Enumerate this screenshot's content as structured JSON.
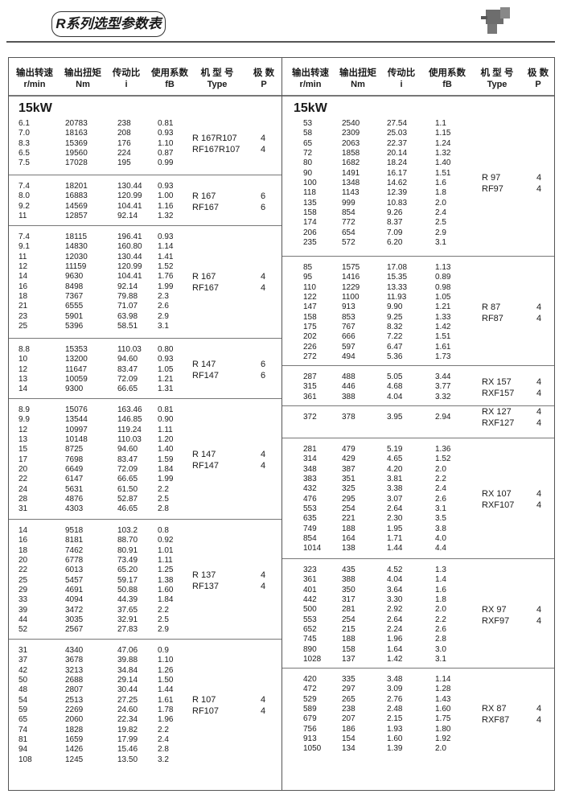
{
  "title": "R系列选型参数表",
  "header": {
    "speed_cn": "输出转速",
    "torque_cn": "输出扭矩",
    "ratio_cn": "传动比",
    "fs_cn": "使用系数",
    "type_cn": "机 型 号",
    "poles_cn": "极 数",
    "speed_unit": "r/min",
    "torque_unit": "Nm",
    "ratio_unit": "i",
    "fs_unit": "fB",
    "type_unit": "Type",
    "poles_unit": "P"
  },
  "power": "15kW",
  "left": [
    {
      "types": [
        "R 167R107",
        "RF167R107"
      ],
      "poles": [
        "4",
        "4"
      ],
      "rows": [
        [
          "6.1",
          "20783",
          "238",
          "0.81"
        ],
        [
          "7.0",
          "18163",
          "208",
          "0.93"
        ],
        [
          "8.3",
          "15369",
          "176",
          "1.10"
        ],
        [
          "6.5",
          "19560",
          "224",
          "0.87"
        ],
        [
          "7.5",
          "17028",
          "195",
          "0.99"
        ]
      ]
    },
    {
      "types": [
        "R 167",
        "RF167"
      ],
      "poles": [
        "6",
        "6"
      ],
      "rows": [
        [
          "7.4",
          "18201",
          "130.44",
          "0.93"
        ],
        [
          "8.0",
          "16883",
          "120.99",
          "1.00"
        ],
        [
          "9.2",
          "14569",
          "104.41",
          "1.16"
        ],
        [
          "11",
          "12857",
          "92.14",
          "1.32"
        ]
      ]
    },
    {
      "types": [
        "R 167",
        "RF167"
      ],
      "poles": [
        "4",
        "4"
      ],
      "rows": [
        [
          "7.4",
          "18115",
          "196.41",
          "0.93"
        ],
        [
          "9.1",
          "14830",
          "160.80",
          "1.14"
        ],
        [
          "11",
          "12030",
          "130.44",
          "1.41"
        ],
        [
          "12",
          "11159",
          "120.99",
          "1.52"
        ],
        [
          "14",
          "9630",
          "104.41",
          "1.76"
        ],
        [
          "16",
          "8498",
          "92.14",
          "1.99"
        ],
        [
          "18",
          "7367",
          "79.88",
          "2.3"
        ],
        [
          "21",
          "6555",
          "71.07",
          "2.6"
        ],
        [
          "23",
          "5901",
          "63.98",
          "2.9"
        ],
        [
          "25",
          "5396",
          "58.51",
          "3.1"
        ]
      ]
    },
    {
      "types": [
        "R 147",
        "RF147"
      ],
      "poles": [
        "6",
        "6"
      ],
      "rows": [
        [
          "8.8",
          "15353",
          "110.03",
          "0.80"
        ],
        [
          "10",
          "13200",
          "94.60",
          "0.93"
        ],
        [
          "12",
          "11647",
          "83.47",
          "1.05"
        ],
        [
          "13",
          "10059",
          "72.09",
          "1.21"
        ],
        [
          "14",
          "9300",
          "66.65",
          "1.31"
        ]
      ]
    },
    {
      "types": [
        "R 147",
        "RF147"
      ],
      "poles": [
        "4",
        "4"
      ],
      "rows": [
        [
          "8.9",
          "15076",
          "163.46",
          "0.81"
        ],
        [
          "9.9",
          "13544",
          "146.85",
          "0.90"
        ],
        [
          "12",
          "10997",
          "119.24",
          "1.11"
        ],
        [
          "13",
          "10148",
          "110.03",
          "1.20"
        ],
        [
          "15",
          "8725",
          "94.60",
          "1.40"
        ],
        [
          "17",
          "7698",
          "83.47",
          "1.59"
        ],
        [
          "20",
          "6649",
          "72.09",
          "1.84"
        ],
        [
          "22",
          "6147",
          "66.65",
          "1.99"
        ],
        [
          "24",
          "5631",
          "61.50",
          "2.2"
        ],
        [
          "28",
          "4876",
          "52.87",
          "2.5"
        ],
        [
          "31",
          "4303",
          "46.65",
          "2.8"
        ]
      ]
    },
    {
      "types": [
        "R 137",
        "RF137"
      ],
      "poles": [
        "4",
        "4"
      ],
      "rows": [
        [
          "14",
          "9518",
          "103.2",
          "0.8"
        ],
        [
          "16",
          "8181",
          "88.70",
          "0.92"
        ],
        [
          "18",
          "7462",
          "80.91",
          "1.01"
        ],
        [
          "20",
          "6778",
          "73.49",
          "1.11"
        ],
        [
          "22",
          "6013",
          "65.20",
          "1.25"
        ],
        [
          "25",
          "5457",
          "59.17",
          "1.38"
        ],
        [
          "29",
          "4691",
          "50.88",
          "1.60"
        ],
        [
          "33",
          "4094",
          "44.39",
          "1.84"
        ],
        [
          "39",
          "3472",
          "37.65",
          "2.2"
        ],
        [
          "44",
          "3035",
          "32.91",
          "2.5"
        ],
        [
          "52",
          "2567",
          "27.83",
          "2.9"
        ]
      ]
    },
    {
      "types": [
        "R 107",
        "RF107"
      ],
      "poles": [
        "4",
        "4"
      ],
      "rows": [
        [
          "31",
          "4340",
          "47.06",
          "0.9"
        ],
        [
          "37",
          "3678",
          "39.88",
          "1.10"
        ],
        [
          "42",
          "3213",
          "34.84",
          "1.26"
        ],
        [
          "50",
          "2688",
          "29.14",
          "1.50"
        ],
        [
          "48",
          "2807",
          "30.44",
          "1.44"
        ],
        [
          "54",
          "2513",
          "27.25",
          "1.61"
        ],
        [
          "59",
          "2269",
          "24.60",
          "1.78"
        ],
        [
          "65",
          "2060",
          "22.34",
          "1.96"
        ],
        [
          "74",
          "1828",
          "19.82",
          "2.2"
        ],
        [
          "81",
          "1659",
          "17.99",
          "2.4"
        ],
        [
          "94",
          "1426",
          "15.46",
          "2.8"
        ],
        [
          "108",
          "1245",
          "13.50",
          "3.2"
        ]
      ]
    }
  ],
  "right": [
    {
      "types": [
        "R 97",
        "RF97"
      ],
      "poles": [
        "4",
        "4"
      ],
      "rows": [
        [
          "53",
          "2540",
          "27.54",
          "1.1"
        ],
        [
          "58",
          "2309",
          "25.03",
          "1.15"
        ],
        [
          "65",
          "2063",
          "22.37",
          "1.24"
        ],
        [
          "72",
          "1858",
          "20.14",
          "1.32"
        ],
        [
          "80",
          "1682",
          "18.24",
          "1.40"
        ],
        [
          "90",
          "1491",
          "16.17",
          "1.51"
        ],
        [
          "100",
          "1348",
          "14.62",
          "1.6"
        ],
        [
          "118",
          "1143",
          "12.39",
          "1.8"
        ],
        [
          "135",
          "999",
          "10.83",
          "2.0"
        ],
        [
          "158",
          "854",
          "9.26",
          "2.4"
        ],
        [
          "174",
          "772",
          "8.37",
          "2.5"
        ],
        [
          "206",
          "654",
          "7.09",
          "2.9"
        ],
        [
          "235",
          "572",
          "6.20",
          "3.1"
        ]
      ]
    },
    {
      "types": [
        "R 87",
        "RF87"
      ],
      "poles": [
        "4",
        "4"
      ],
      "rows": [
        [
          "85",
          "1575",
          "17.08",
          "1.13"
        ],
        [
          "95",
          "1416",
          "15.35",
          "0.89"
        ],
        [
          "110",
          "1229",
          "13.33",
          "0.98"
        ],
        [
          "122",
          "1100",
          "11.93",
          "1.05"
        ],
        [
          "147",
          "913",
          "9.90",
          "1.21"
        ],
        [
          "158",
          "853",
          "9.25",
          "1.33"
        ],
        [
          "175",
          "767",
          "8.32",
          "1.42"
        ],
        [
          "202",
          "666",
          "7.22",
          "1.51"
        ],
        [
          "226",
          "597",
          "6.47",
          "1.61"
        ],
        [
          "272",
          "494",
          "5.36",
          "1.73"
        ]
      ]
    },
    {
      "types": [
        "RX 157",
        "RXF157"
      ],
      "poles": [
        "4",
        "4"
      ],
      "rows": [
        [
          "287",
          "488",
          "5.05",
          "3.44"
        ],
        [
          "315",
          "446",
          "4.68",
          "3.77"
        ],
        [
          "361",
          "388",
          "4.04",
          "3.32"
        ]
      ]
    },
    {
      "types": [
        "RX 127",
        "RXF127"
      ],
      "poles": [
        "4",
        "4"
      ],
      "rows": [
        [
          "372",
          "378",
          "3.95",
          "2.94"
        ]
      ]
    },
    {
      "types": [
        "RX 107",
        "RXF107"
      ],
      "poles": [
        "4",
        "4"
      ],
      "rows": [
        [
          "281",
          "479",
          "5.19",
          "1.36"
        ],
        [
          "314",
          "429",
          "4.65",
          "1.52"
        ],
        [
          "348",
          "387",
          "4.20",
          "2.0"
        ],
        [
          "383",
          "351",
          "3.81",
          "2.2"
        ],
        [
          "432",
          "325",
          "3.38",
          "2.4"
        ],
        [
          "476",
          "295",
          "3.07",
          "2.6"
        ],
        [
          "553",
          "254",
          "2.64",
          "3.1"
        ],
        [
          "635",
          "221",
          "2.30",
          "3.5"
        ],
        [
          "749",
          "188",
          "1.95",
          "3.8"
        ],
        [
          "854",
          "164",
          "1.71",
          "4.0"
        ],
        [
          "1014",
          "138",
          "1.44",
          "4.4"
        ]
      ]
    },
    {
      "types": [
        "RX 97",
        "RXF97"
      ],
      "poles": [
        "4",
        "4"
      ],
      "rows": [
        [
          "323",
          "435",
          "4.52",
          "1.3"
        ],
        [
          "361",
          "388",
          "4.04",
          "1.4"
        ],
        [
          "401",
          "350",
          "3.64",
          "1.6"
        ],
        [
          "442",
          "317",
          "3.30",
          "1.8"
        ],
        [
          "500",
          "281",
          "2.92",
          "2.0"
        ],
        [
          "553",
          "254",
          "2.64",
          "2.2"
        ],
        [
          "652",
          "215",
          "2.24",
          "2.6"
        ],
        [
          "745",
          "188",
          "1.96",
          "2.8"
        ],
        [
          "890",
          "158",
          "1.64",
          "3.0"
        ],
        [
          "1028",
          "137",
          "1.42",
          "3.1"
        ]
      ]
    },
    {
      "types": [
        "RX 87",
        "RXF87"
      ],
      "poles": [
        "4",
        "4"
      ],
      "rows": [
        [
          "420",
          "335",
          "3.48",
          "1.14"
        ],
        [
          "472",
          "297",
          "3.09",
          "1.28"
        ],
        [
          "529",
          "265",
          "2.76",
          "1.43"
        ],
        [
          "589",
          "238",
          "2.48",
          "1.60"
        ],
        [
          "679",
          "207",
          "2.15",
          "1.75"
        ],
        [
          "756",
          "186",
          "1.93",
          "1.80"
        ],
        [
          "913",
          "154",
          "1.60",
          "1.92"
        ],
        [
          "1050",
          "134",
          "1.39",
          "2.0"
        ]
      ]
    }
  ]
}
